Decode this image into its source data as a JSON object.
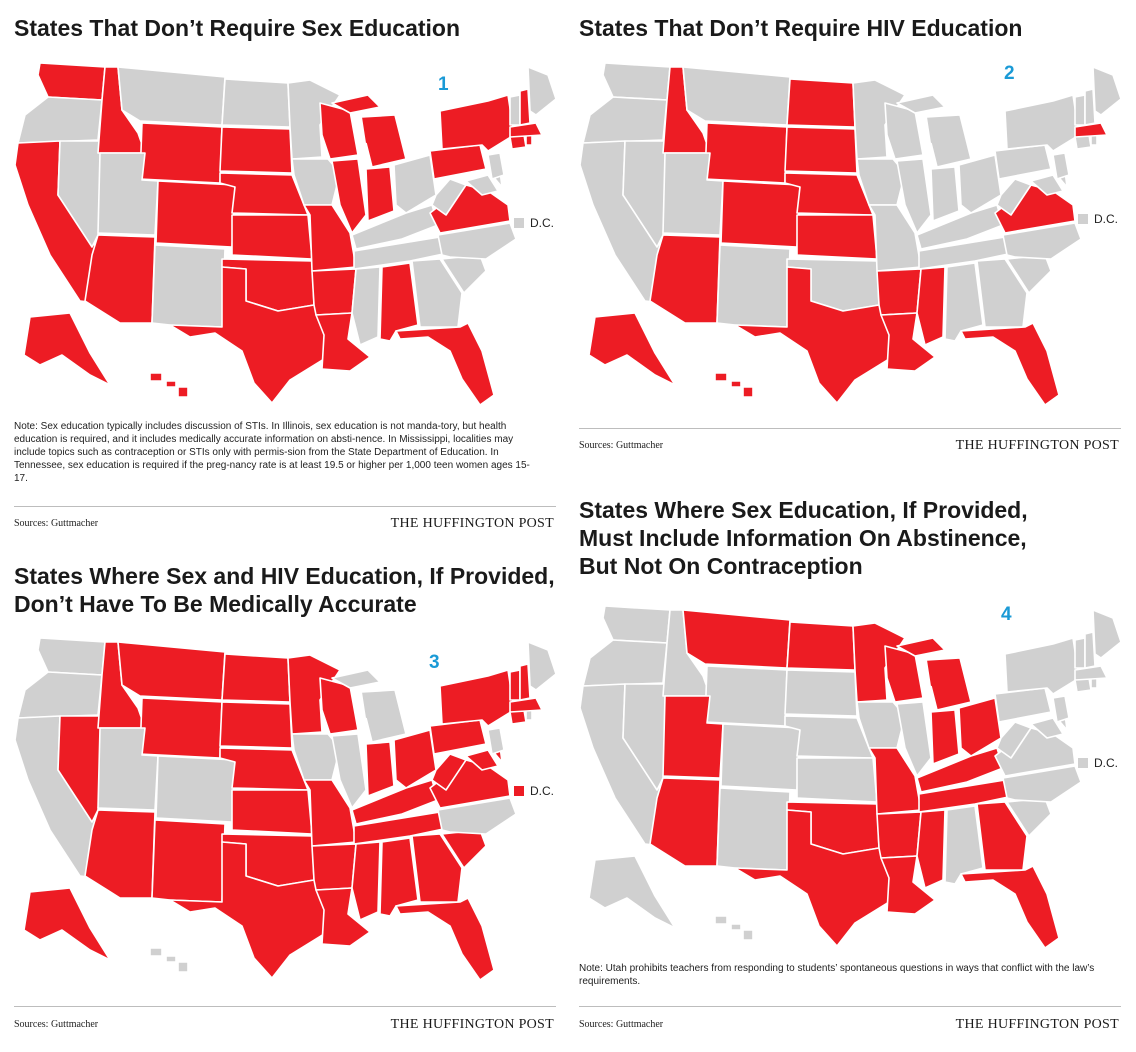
{
  "colors": {
    "required": "#ed1c24",
    "not_applicable": "#d0d0d0",
    "accent_number": "#1a9ad6"
  },
  "shared": {
    "dc_label": "D.C.",
    "sources": "Sources: Guttmacher",
    "brand": "THE HUFFINGTON POST"
  },
  "panels": [
    {
      "number": "1",
      "title": "States That Don’t Require Sex Education",
      "dc_highlighted": false,
      "highlighted_states": [
        "WA",
        "ID",
        "CA",
        "AZ",
        "WY",
        "CO",
        "SD",
        "NE",
        "KS",
        "OK",
        "TX",
        "MO",
        "AR",
        "LA",
        "WI",
        "MI",
        "IL",
        "IN",
        "AL",
        "FL",
        "NY",
        "PA",
        "VA",
        "NH",
        "MA",
        "RI",
        "CT",
        "AK",
        "HI"
      ],
      "note": "Note: Sex education typically includes discussion of STIs. In Illinois, sex education is not manda-tory, but health education is required, and it includes medically accurate information on absti-nence. In Mississippi, localities may include topics such as contraception or STIs only with permis-sion from the State Department of Education. In Tennessee, sex education is required if the preg-nancy rate is at least 19.5 or higher per 1,000 teen women ages 15-17."
    },
    {
      "number": "2",
      "title": "States That Don’t Require HIV Education",
      "dc_highlighted": false,
      "highlighted_states": [
        "ID",
        "AZ",
        "WY",
        "CO",
        "ND",
        "SD",
        "NE",
        "KS",
        "TX",
        "AR",
        "LA",
        "MS",
        "FL",
        "VA",
        "MA",
        "AK",
        "HI"
      ],
      "note": ""
    },
    {
      "number": "3",
      "title": "States Where Sex and HIV Education, If Provided, Don’t Have To Be Medically Accurate",
      "dc_highlighted": true,
      "highlighted_states": [
        "ID",
        "MT",
        "NV",
        "AZ",
        "NM",
        "WY",
        "ND",
        "SD",
        "NE",
        "KS",
        "OK",
        "TX",
        "MN",
        "WI",
        "MO",
        "AR",
        "LA",
        "IN",
        "OH",
        "KY",
        "TN",
        "MS",
        "AL",
        "GA",
        "FL",
        "SC",
        "WV",
        "VA",
        "MD",
        "PA",
        "NY",
        "VT",
        "NH",
        "MA",
        "CT",
        "DE",
        "AK"
      ],
      "note": ""
    },
    {
      "number": "4",
      "title": "States Where Sex Education, If Provided, Must Include Information On Abstinence, But Not On Contraception",
      "dc_highlighted": false,
      "highlighted_states": [
        "MT",
        "ND",
        "MN",
        "WI",
        "MI",
        "UT",
        "AZ",
        "MO",
        "OK",
        "TX",
        "AR",
        "LA",
        "MS",
        "IN",
        "OH",
        "KY",
        "TN",
        "GA",
        "FL"
      ],
      "note": "Note: Utah prohibits teachers from responding to students’ spontaneous questions in ways that conflict with the law’s requirements."
    }
  ]
}
